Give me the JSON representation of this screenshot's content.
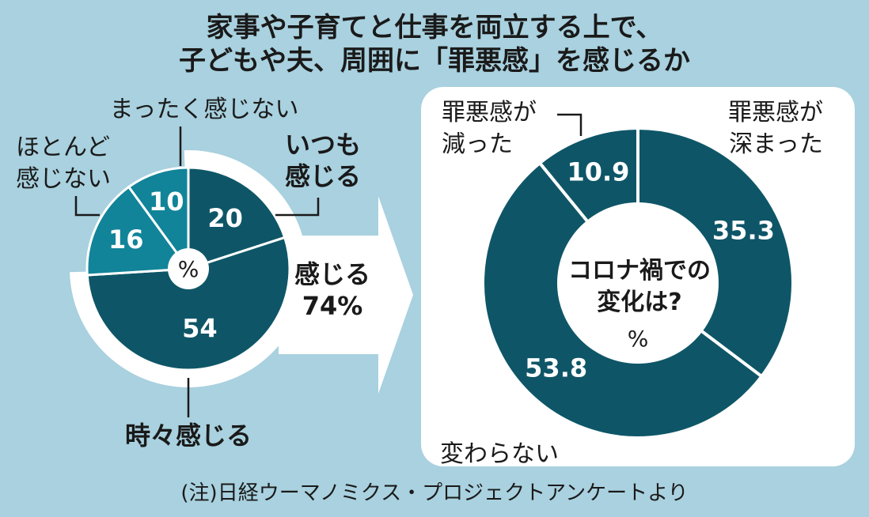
{
  "title_line1": "家事や子育てと仕事を両立する上で、",
  "title_line2": "子どもや夫、周囲に「罪悪感」を感じるか",
  "note": "(注)日経ウーマノミクス・プロジェクトアンケートより",
  "arrow_label_line1": "感じる",
  "arrow_label_line2": "74%",
  "colors": {
    "background": "#a9d1df",
    "dark": "#0e5667",
    "light": "#118499",
    "white": "#ffffff"
  },
  "chart_data": [
    {
      "type": "pie",
      "unit": "%",
      "slices": [
        {
          "label_lines": [
            "いつも",
            "感じる"
          ],
          "value": 20,
          "value_label": "20",
          "color": "#0e5667",
          "bold": true
        },
        {
          "label_lines": [
            "時々感じる"
          ],
          "value": 54,
          "value_label": "54",
          "color": "#0e5667",
          "bold": true
        },
        {
          "label_lines": [
            "ほとんど",
            "感じない"
          ],
          "value": 16,
          "value_label": "16",
          "color": "#118499",
          "bold": false
        },
        {
          "label_lines": [
            "まったく感じない"
          ],
          "value": 10,
          "value_label": "10",
          "color": "#118499",
          "bold": false
        }
      ]
    },
    {
      "type": "pie",
      "donut": true,
      "center_line1": "コロナ禍での",
      "center_line2": "変化は?",
      "unit": "%",
      "slices": [
        {
          "label_lines": [
            "罪悪感が",
            "深まった"
          ],
          "value": 35.3,
          "value_label": "35.3",
          "color": "#0e5667"
        },
        {
          "label_lines": [
            "変わらない"
          ],
          "value": 53.8,
          "value_label": "53.8",
          "color": "#0e5667"
        },
        {
          "label_lines": [
            "罪悪感が",
            "減った"
          ],
          "value": 10.9,
          "value_label": "10.9",
          "color": "#0e5667"
        }
      ]
    }
  ]
}
